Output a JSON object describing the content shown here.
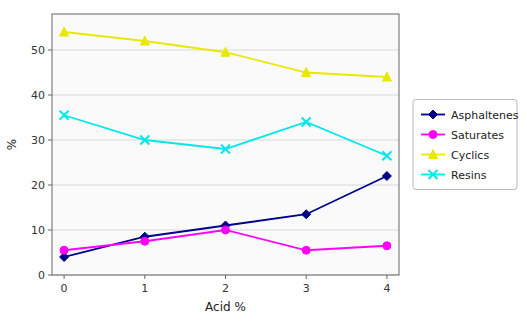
{
  "chart_data": {
    "type": "line",
    "x": [
      0,
      1,
      2,
      3,
      4
    ],
    "series": [
      {
        "name": "Asphaltenes",
        "color": "#00008B",
        "marker": "diamond",
        "values": [
          4,
          8.5,
          11,
          13.5,
          22
        ]
      },
      {
        "name": "Saturates",
        "color": "#ff00ff",
        "marker": "circle",
        "values": [
          5.5,
          7.5,
          10,
          5.5,
          6.5
        ]
      },
      {
        "name": "Cyclics",
        "color": "#e8e800",
        "marker": "triangle",
        "values": [
          54,
          52,
          49.5,
          45,
          44
        ]
      },
      {
        "name": "Resins",
        "color": "#00e8e8",
        "marker": "x",
        "values": [
          35.5,
          30,
          28,
          34,
          26.5
        ]
      }
    ],
    "xlabel": "Acid %",
    "ylabel": "%",
    "xlim": [
      -0.15,
      4.15
    ],
    "ylim": [
      0,
      58
    ],
    "xticks": [
      0,
      1,
      2,
      3,
      4
    ],
    "yticks": [
      0,
      10,
      20,
      30,
      40,
      50
    ],
    "grid": true,
    "legend": "right"
  }
}
